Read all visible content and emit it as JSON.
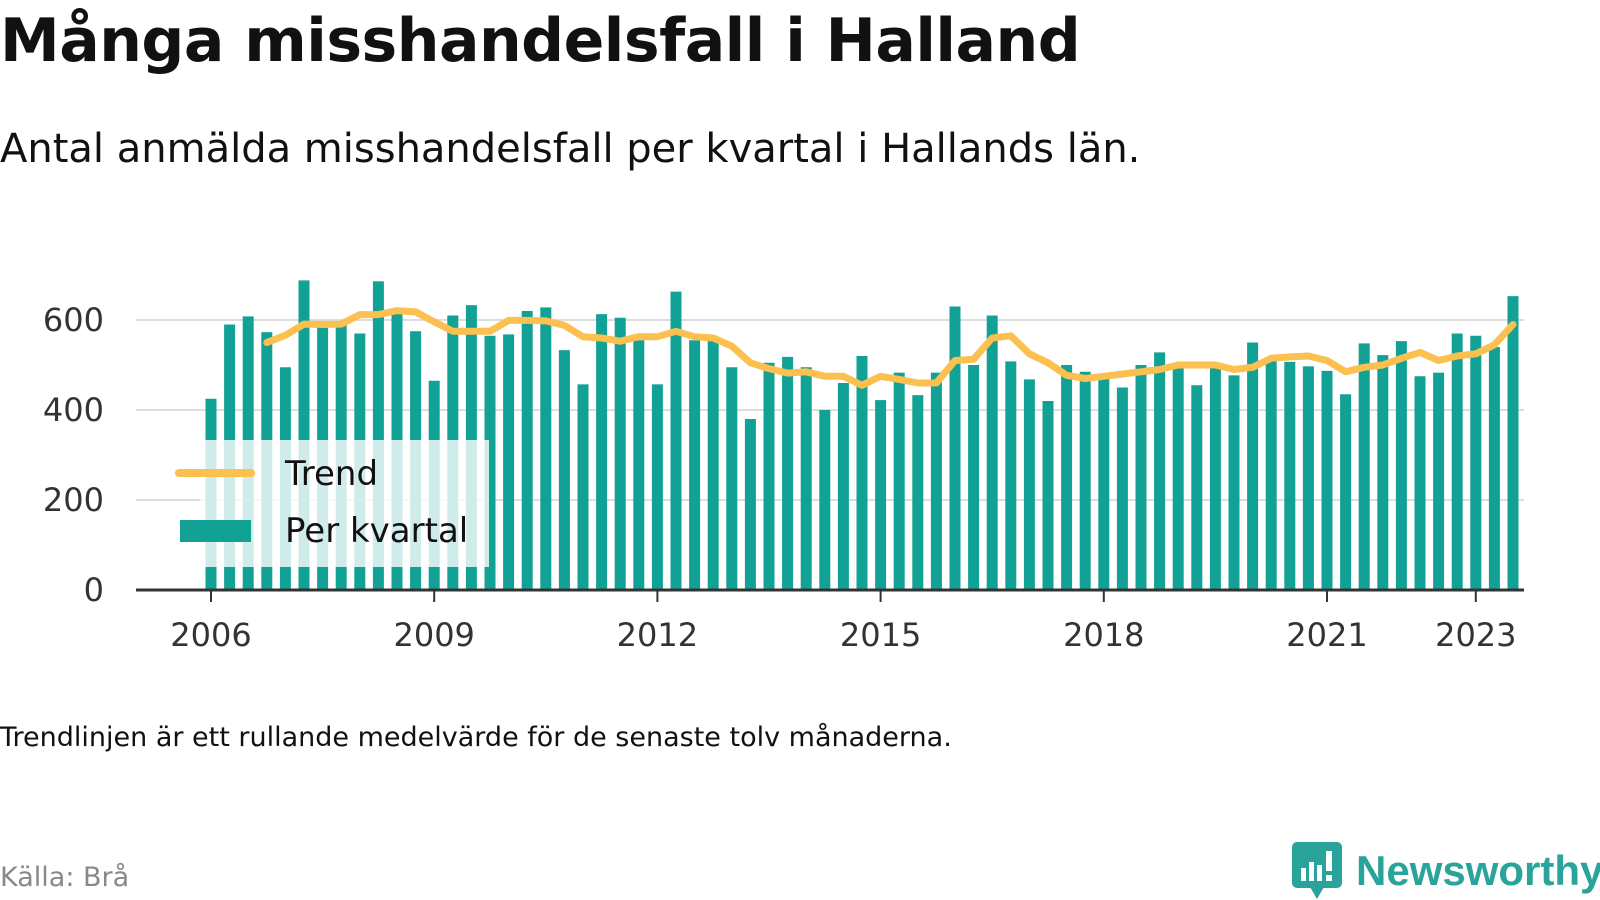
{
  "title": "Många misshandelsfall i Halland",
  "subtitle": "Antal anmälda misshandelsfall per kvartal i Hallands län.",
  "note": "Trendlinjen är ett rullande medelvärde för de senaste tolv månaderna.",
  "source": "Källa: Brå",
  "brand": {
    "name": "Newsworthy",
    "icon": "newsworthy-logo-icon",
    "color": "#2aa39a"
  },
  "colors": {
    "bar": "#12a195",
    "trend": "#fbc04f",
    "grid": "#dddddd",
    "axis": "#333333"
  },
  "chart_data": {
    "type": "bar",
    "x_start_year": 2006,
    "x_ticks": [
      2006,
      2009,
      2012,
      2015,
      2018,
      2021,
      2023
    ],
    "y_ticks": [
      0,
      200,
      400,
      600
    ],
    "ylim": [
      0,
      700
    ],
    "grid": true,
    "legend_position": "bottom-left",
    "series": [
      {
        "name": "Per kvartal",
        "kind": "bar",
        "values": [
          425,
          590,
          608,
          573,
          495,
          688,
          590,
          597,
          570,
          686,
          620,
          575,
          465,
          610,
          633,
          565,
          568,
          620,
          628,
          533,
          457,
          613,
          605,
          555,
          457,
          663,
          555,
          560,
          495,
          380,
          505,
          518,
          495,
          400,
          460,
          520,
          422,
          483,
          433,
          483,
          630,
          500,
          610,
          508,
          468,
          420,
          500,
          485,
          480,
          450,
          500,
          528,
          500,
          455,
          500,
          477,
          550,
          510,
          507,
          497,
          487,
          435,
          548,
          522,
          553,
          475,
          483,
          570,
          565,
          540,
          653
        ]
      },
      {
        "name": "Trend",
        "kind": "line",
        "values": [
          null,
          null,
          null,
          550,
          566,
          591,
          590,
          591,
          612,
          612,
          621,
          618,
          596,
          575,
          575,
          575,
          599,
          599,
          598,
          588,
          563,
          560,
          553,
          563,
          563,
          575,
          563,
          560,
          542,
          505,
          492,
          482,
          485,
          475,
          475,
          455,
          475,
          468,
          460,
          460,
          510,
          513,
          560,
          565,
          525,
          505,
          477,
          470,
          475,
          480,
          485,
          490,
          500,
          500,
          500,
          490,
          495,
          515,
          518,
          520,
          510,
          485,
          495,
          500,
          515,
          528,
          510,
          520,
          525,
          545,
          590
        ]
      }
    ]
  }
}
